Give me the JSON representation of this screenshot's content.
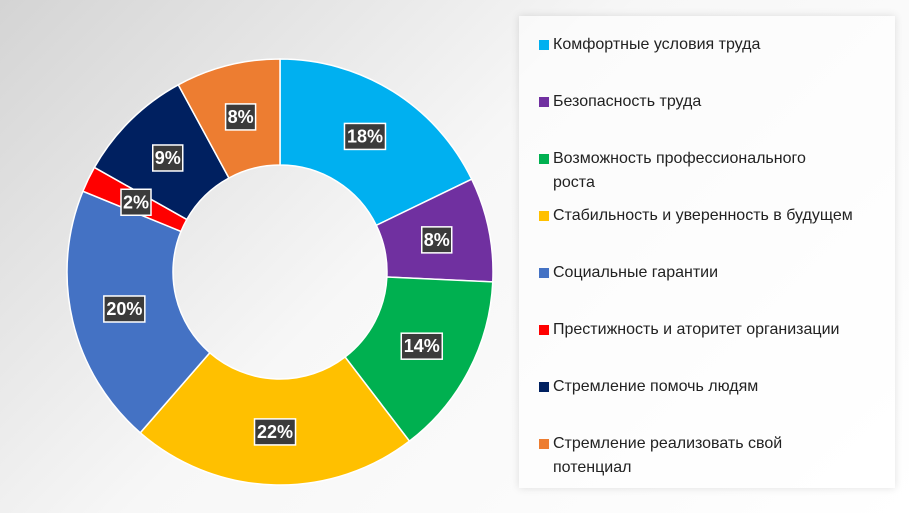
{
  "chart_data": {
    "type": "pie",
    "donut": true,
    "legend_position": "right",
    "categories": [
      "Комфортные условия труда",
      "Безопасность труда",
      "Возможность профессионального роста",
      "Стабильность и уверенность в будущем",
      "Социальные гарантии",
      "Престижность и аторитет организации",
      "Стремление помочь людям",
      "Стремление реализовать свой потенциал"
    ],
    "legend_lines": [
      [
        "Комфортные условия труда"
      ],
      [
        "Безопасность труда"
      ],
      [
        "Возможность профессионального",
        "роста"
      ],
      [
        "Стабильность и уверенность в будущем"
      ],
      [
        "Социальные гарантии"
      ],
      [
        "Престижность и аторитет организации"
      ],
      [
        "Стремление помочь людям"
      ],
      [
        "Стремление реализовать свой",
        "потенциал"
      ]
    ],
    "values": [
      18,
      8,
      14,
      22,
      20,
      2,
      9,
      8
    ],
    "labels": [
      "18%",
      "8%",
      "14%",
      "22%",
      "20%",
      "2%",
      "9%",
      "8%"
    ],
    "colors": [
      "#00b0f0",
      "#7030a0",
      "#00b050",
      "#ffc000",
      "#4472c4",
      "#ff0000",
      "#002060",
      "#ed7d31"
    ]
  }
}
